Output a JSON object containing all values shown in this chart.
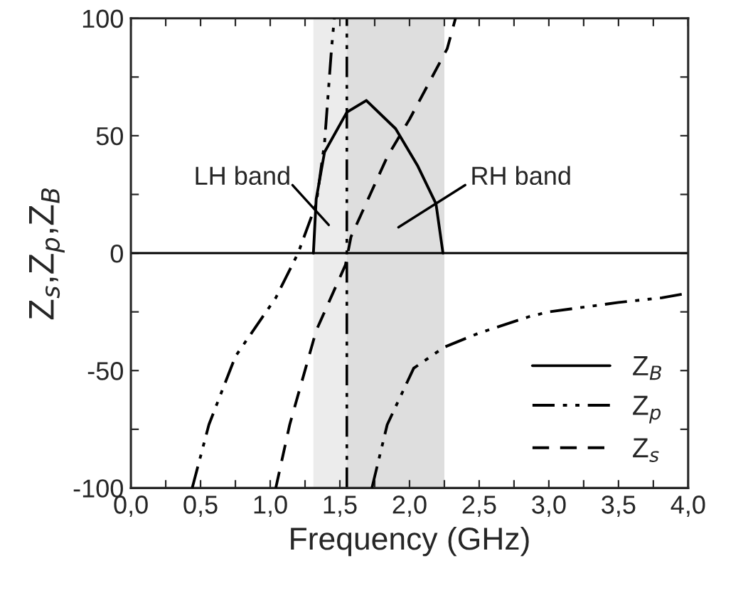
{
  "chart_data": {
    "type": "line",
    "xlabel": "Frequency (GHz)",
    "ylabel": "Z$_{s}$,Z$_{p}$,Z$_{B}$",
    "xlim": [
      0,
      4
    ],
    "ylim": [
      -100,
      100
    ],
    "xticks": [
      {
        "value": 0,
        "label": "0,0"
      },
      {
        "value": 0.25,
        "label": null
      },
      {
        "value": 0.5,
        "label": "0,5"
      },
      {
        "value": 0.75,
        "label": null
      },
      {
        "value": 1,
        "label": "1,0"
      },
      {
        "value": 1.25,
        "label": null
      },
      {
        "value": 1.5,
        "label": "1,5"
      },
      {
        "value": 1.75,
        "label": null
      },
      {
        "value": 2,
        "label": "2,0"
      },
      {
        "value": 2.25,
        "label": null
      },
      {
        "value": 2.5,
        "label": "2,5"
      },
      {
        "value": 2.75,
        "label": null
      },
      {
        "value": 3,
        "label": "3,0"
      },
      {
        "value": 3.25,
        "label": null
      },
      {
        "value": 3.5,
        "label": "3,5"
      },
      {
        "value": 3.75,
        "label": null
      },
      {
        "value": 4,
        "label": "4,0"
      }
    ],
    "yticks": [
      -100,
      {
        "value": -75,
        "label": null
      },
      -50,
      {
        "value": -25,
        "label": null
      },
      0,
      {
        "value": 25,
        "label": null
      },
      50,
      {
        "value": 75,
        "label": null
      },
      100
    ],
    "series": [
      {
        "name": "Z$_{B}$",
        "color": "#000000",
        "line_style": "solid",
        "x": [
          1.31,
          1.33,
          1.39,
          1.55,
          1.69,
          1.9,
          2.06,
          2.19,
          2.24
        ],
        "values": [
          0,
          23,
          43,
          60,
          65,
          53,
          37,
          21,
          0
        ]
      },
      {
        "name": "Z$_{p}$",
        "color": "#000000",
        "line_style": "dashdotdot",
        "x": [
          0.44,
          0.56,
          0.75,
          1.04,
          1.2,
          1.33,
          1.39,
          1.44,
          1.46,
          null,
          1.73,
          1.84,
          2.03,
          2.25,
          2.5,
          2.86,
          3.0,
          3.5,
          3.81,
          4.0
        ],
        "values": [
          -100,
          -73,
          -44,
          -19,
          0,
          21,
          47,
          87,
          100,
          null,
          -100,
          -73,
          -49,
          -40,
          -34,
          -27,
          -25,
          -21,
          -19,
          -17
        ]
      },
      {
        "name": "Z$_{s}$",
        "color": "#000000",
        "line_style": "dashed",
        "x": [
          1.04,
          1.14,
          1.33,
          1.54,
          1.58,
          1.84,
          2.0,
          2.27,
          2.33
        ],
        "values": [
          -100,
          -73,
          -33,
          -5,
          7,
          41,
          57,
          87,
          100
        ]
      }
    ],
    "ref_lines": [
      {
        "axis": "y",
        "value": 0,
        "color": "#000000",
        "line_style": "solid"
      },
      {
        "axis": "x",
        "value": 1.55,
        "color": "#000000",
        "line_style": "dashdotdot"
      }
    ],
    "bands": [
      {
        "axis": "x",
        "from": 1.31,
        "to": 1.55,
        "color": "#ececec"
      },
      {
        "axis": "x",
        "from": 1.55,
        "to": 2.25,
        "color": "#dedede"
      }
    ],
    "annotations": [
      "LH band",
      "RH band"
    ],
    "legend": "bottom right",
    "grid": false
  }
}
